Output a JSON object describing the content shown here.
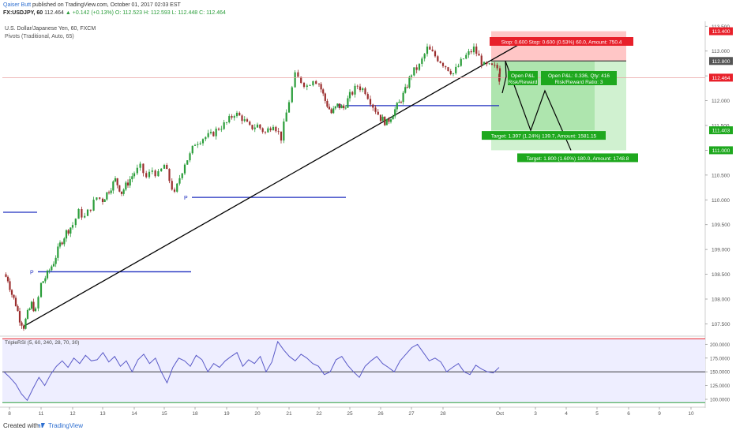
{
  "header": {
    "author": "Qaiser Butt",
    "published": "published on TradingView.com, October 01, 2017 02:03 EST",
    "symbol": "FX:USDJPY, 60",
    "last": "112.464",
    "change": "+0.142 (+0.13%)",
    "ohlc": "O: 112.523  H: 112.593  L: 112.448  C: 112.464"
  },
  "legend": {
    "title": "U.S. Dollar/Japanese Yen, 60, FXCM",
    "pivots": "Pivots (Traditional, Auto, 65)",
    "rsi": "TripleRSI (5, 60, 240, 28, 70, 30)"
  },
  "footer": {
    "created": "Created with",
    "brand": "TradingView"
  },
  "colors": {
    "up": "#2a9d3a",
    "down": "#9b2e2e",
    "pivot": "#1f2fbf",
    "rsi_line": "#5a5ac8",
    "rsi_bg": "#eeeeff",
    "stop_fill": "#ffb3b3",
    "target_fill": "#9fe09f",
    "target_label": "#1ea81e",
    "stop_label": "#e8202a",
    "trend": "#000000"
  },
  "chart_data": [
    {
      "type": "candlestick",
      "title": "U.S. Dollar/Japanese Yen, 60, FXCM",
      "ylim": [
        107.3,
        113.6
      ],
      "x_ticks": [
        "8",
        "11",
        "12",
        "13",
        "14",
        "15",
        "18",
        "19",
        "20",
        "21",
        "22",
        "25",
        "26",
        "27",
        "28",
        "Oct",
        "3",
        "4",
        "5",
        "6",
        "9",
        "10"
      ],
      "y_ticks": [
        "107.500",
        "108.000",
        "108.500",
        "109.000",
        "109.500",
        "110.000",
        "110.500",
        "111.000",
        "111.500",
        "112.000",
        "112.500",
        "113.000",
        "113.500"
      ],
      "y_markers": [
        {
          "label": "113.400",
          "value": 113.4,
          "color": "#e8202a"
        },
        {
          "label": "112.800",
          "value": 112.8,
          "color": "#555555"
        },
        {
          "label": "112.464",
          "value": 112.464,
          "color": "#e8202a"
        },
        {
          "label": "111.403",
          "value": 111.403,
          "color": "#1ea81e"
        },
        {
          "label": "111.000",
          "value": 111.0,
          "color": "#1ea81e"
        }
      ],
      "close_path": [
        [
          "8",
          108.5
        ],
        [
          "8",
          108.4
        ],
        [
          "8",
          108.1
        ],
        [
          "8",
          107.9
        ],
        [
          "8",
          107.6
        ],
        [
          "8",
          107.45
        ],
        [
          "8",
          107.7
        ],
        [
          "8",
          107.9
        ],
        [
          "8",
          107.75
        ],
        [
          "11",
          108.3
        ],
        [
          "11",
          108.5
        ],
        [
          "11",
          108.75
        ],
        [
          "11",
          109.1
        ],
        [
          "11",
          109.35
        ],
        [
          "12",
          109.5
        ],
        [
          "12",
          109.75
        ],
        [
          "12",
          109.65
        ],
        [
          "12",
          109.85
        ],
        [
          "12",
          110.05
        ],
        [
          "13",
          110.0
        ],
        [
          "13",
          110.2
        ],
        [
          "13",
          110.4
        ],
        [
          "13",
          110.15
        ],
        [
          "13",
          110.35
        ],
        [
          "14",
          110.55
        ],
        [
          "14",
          110.65
        ],
        [
          "14",
          110.45
        ],
        [
          "14",
          110.6
        ],
        [
          "14",
          110.5
        ],
        [
          "15",
          110.7
        ],
        [
          "15",
          110.4
        ],
        [
          "15",
          110.1
        ],
        [
          "15",
          110.45
        ],
        [
          "15",
          110.75
        ],
        [
          "15",
          110.9
        ],
        [
          "18",
          111.15
        ],
        [
          "18",
          111.25
        ],
        [
          "18",
          111.3
        ],
        [
          "18",
          111.45
        ],
        [
          "19",
          111.55
        ],
        [
          "19",
          111.75
        ],
        [
          "19",
          111.65
        ],
        [
          "19",
          111.45
        ],
        [
          "20",
          111.5
        ],
        [
          "20",
          111.35
        ],
        [
          "20",
          111.55
        ],
        [
          "20",
          111.25
        ],
        [
          "21",
          112.0
        ],
        [
          "21",
          112.5
        ],
        [
          "21",
          112.4
        ],
        [
          "21",
          112.3
        ],
        [
          "21",
          112.45
        ],
        [
          "22",
          112.35
        ],
        [
          "22",
          112.0
        ],
        [
          "22",
          111.75
        ],
        [
          "22",
          111.9
        ],
        [
          "22",
          111.85
        ],
        [
          "25",
          112.1
        ],
        [
          "25",
          112.3
        ],
        [
          "25",
          112.2
        ],
        [
          "25",
          111.9
        ],
        [
          "26",
          111.65
        ],
        [
          "26",
          111.55
        ],
        [
          "26",
          111.75
        ],
        [
          "26",
          111.95
        ],
        [
          "26",
          112.2
        ],
        [
          "27",
          112.55
        ],
        [
          "27",
          112.7
        ],
        [
          "27",
          113.05
        ],
        [
          "27",
          112.9
        ],
        [
          "28",
          112.75
        ],
        [
          "28",
          112.55
        ],
        [
          "28",
          112.85
        ],
        [
          "28",
          113.05
        ],
        [
          "28",
          112.7
        ],
        [
          "Oct",
          112.65
        ],
        [
          "Oct",
          112.55
        ],
        [
          "Oct",
          112.4
        ],
        [
          "Oct",
          112.6
        ],
        [
          "Oct",
          112.464
        ]
      ],
      "pivots": [
        {
          "label": "P",
          "value": 108.55,
          "from": "11",
          "to": "18"
        },
        {
          "label": "P",
          "value": 110.05,
          "from": "18",
          "to": "25"
        },
        {
          "label": "P",
          "value": 111.9,
          "from": "25",
          "to": "Oct"
        }
      ],
      "pivot_stub": {
        "value": 109.75,
        "from": "8",
        "to": "11"
      },
      "trendline": [
        [
          "8",
          107.45
        ],
        [
          "Oct",
          113.1
        ]
      ],
      "projection": [
        [
          "Oct",
          112.8
        ],
        [
          "3",
          111.4
        ],
        [
          "4",
          112.2
        ],
        [
          "5",
          111.0
        ]
      ],
      "position": {
        "entry": 112.8,
        "stop": 113.4,
        "target1": 111.403,
        "target2": 111.0,
        "labels": {
          "stop": "Stop: 0.600  Stop: 0.600 (0.53%) 60.0, Amount: 750.4",
          "open_left": "Open P&L",
          "rr_left": "Risk/Reward",
          "open_right": "Open P&L: 0.336, Qty: 416",
          "rr_right": "Risk/Reward Ratio: 3",
          "target1": "Target: 1.397 (1.24%) 139.7, Amount: 1581.15",
          "target2": "Target: 1.800 (1.60%) 180.0, Amount: 1748.8"
        }
      }
    },
    {
      "type": "line",
      "title": "TripleRSI (5, 60, 240, 28, 70, 30)",
      "ylim": [
        90,
        212
      ],
      "y_ticks": [
        "100.0000",
        "125.0000",
        "150.0000",
        "175.0000",
        "200.0000"
      ],
      "bands": {
        "upper": 210,
        "mid": 150,
        "lower": 94
      },
      "series": [
        {
          "values": [
            150,
            140,
            128,
            110,
            98,
            120,
            140,
            125,
            145,
            160,
            170,
            158,
            175,
            165,
            180,
            170,
            172,
            185,
            168,
            178,
            160,
            170,
            150,
            172,
            182,
            165,
            175,
            150,
            130,
            158,
            175,
            170,
            160,
            180,
            172,
            150,
            165,
            158,
            170,
            178,
            185,
            160,
            172,
            165,
            178,
            150,
            168,
            205,
            190,
            178,
            170,
            182,
            175,
            165,
            160,
            145,
            150,
            172,
            178,
            162,
            150,
            140,
            160,
            170,
            178,
            165,
            158,
            150,
            170,
            182,
            194,
            200,
            185,
            170,
            175,
            168,
            150,
            158,
            165,
            150,
            145,
            162,
            155,
            150,
            148,
            158
          ]
        }
      ]
    }
  ]
}
